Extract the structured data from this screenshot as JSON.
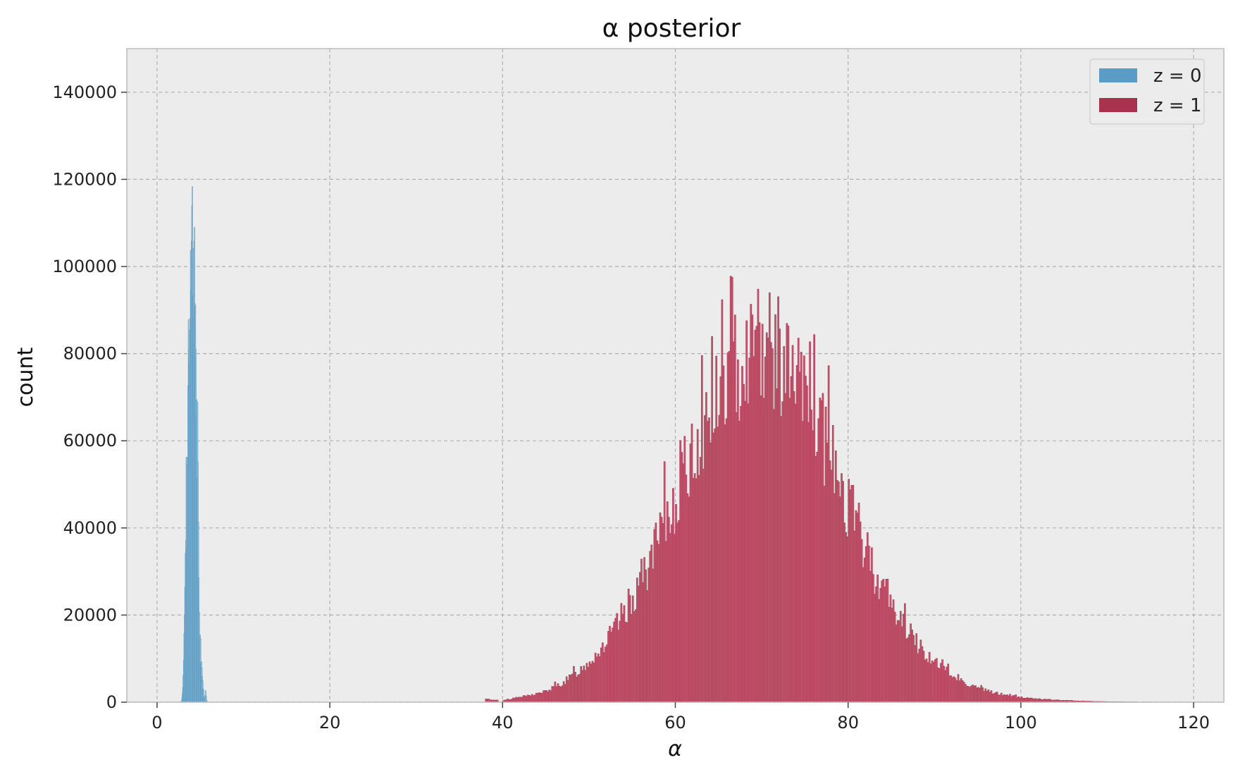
{
  "chart_data": {
    "type": "histogram",
    "title": "α posterior",
    "xlabel": "α",
    "ylabel": "count",
    "xlim": [
      -3.5,
      123.5
    ],
    "ylim": [
      0,
      150000
    ],
    "xticks": [
      0,
      20,
      40,
      60,
      80,
      100,
      120
    ],
    "yticks": [
      0,
      20000,
      40000,
      60000,
      80000,
      100000,
      120000,
      140000
    ],
    "grid": true,
    "legend_position": "top-right",
    "background": "#ececec",
    "series": [
      {
        "name": "z = 0",
        "color": "#5a9cc5",
        "fill": "#cfdbe2",
        "bins": [
          [
            2.8,
            300
          ],
          [
            2.9,
            2000
          ],
          [
            3.0,
            6000
          ],
          [
            3.1,
            15000
          ],
          [
            3.2,
            25000
          ],
          [
            3.3,
            42000
          ],
          [
            3.4,
            41000
          ],
          [
            3.5,
            56000
          ],
          [
            3.6,
            81000
          ],
          [
            3.7,
            84000
          ],
          [
            3.8,
            93000
          ],
          [
            3.9,
            104000
          ],
          [
            4.0,
            110000
          ],
          [
            4.1,
            107000
          ],
          [
            4.2,
            105000
          ],
          [
            4.3,
            94000
          ],
          [
            4.4,
            93000
          ],
          [
            4.5,
            72000
          ],
          [
            4.6,
            56000
          ],
          [
            4.7,
            48000
          ],
          [
            4.8,
            28000
          ],
          [
            4.9,
            16000
          ],
          [
            5.0,
            13000
          ],
          [
            5.1,
            9000
          ],
          [
            5.2,
            6000
          ],
          [
            5.3,
            3500
          ],
          [
            5.4,
            1500
          ],
          [
            5.5,
            800
          ],
          [
            5.6,
            3000
          ],
          [
            5.7,
            200
          ]
        ]
      },
      {
        "name": "z = 1",
        "color": "#a9324f",
        "fill": "#c45a6f",
        "bins": [
          [
            38,
            700
          ],
          [
            40,
            400
          ],
          [
            41,
            800
          ],
          [
            42,
            1200
          ],
          [
            43,
            1500
          ],
          [
            44,
            2000
          ],
          [
            45,
            2500
          ],
          [
            46,
            3500
          ],
          [
            47,
            4500
          ],
          [
            48,
            6000
          ],
          [
            49,
            7500
          ],
          [
            50,
            9500
          ],
          [
            51,
            11500
          ],
          [
            52,
            14000
          ],
          [
            53,
            17000
          ],
          [
            54,
            20500
          ],
          [
            55,
            24000
          ],
          [
            56,
            28000
          ],
          [
            57,
            32000
          ],
          [
            58,
            37000
          ],
          [
            59,
            42000
          ],
          [
            60,
            47000
          ],
          [
            61,
            52000
          ],
          [
            62,
            57000
          ],
          [
            63,
            62000
          ],
          [
            64,
            66000
          ],
          [
            65,
            70000
          ],
          [
            66,
            74000
          ],
          [
            67,
            77000
          ],
          [
            68,
            80000
          ],
          [
            69,
            82000
          ],
          [
            70,
            82000
          ],
          [
            71,
            81000
          ],
          [
            72,
            79000
          ],
          [
            73,
            76000
          ],
          [
            74,
            73000
          ],
          [
            75,
            69000
          ],
          [
            76,
            65000
          ],
          [
            77,
            60000
          ],
          [
            78,
            55000
          ],
          [
            79,
            50000
          ],
          [
            80,
            45000
          ],
          [
            81,
            40000
          ],
          [
            82,
            35000
          ],
          [
            83,
            30000
          ],
          [
            84,
            26000
          ],
          [
            85,
            22000
          ],
          [
            86,
            19000
          ],
          [
            87,
            16000
          ],
          [
            88,
            13500
          ],
          [
            89,
            11000
          ],
          [
            90,
            9000
          ],
          [
            91,
            7500
          ],
          [
            92,
            6000
          ],
          [
            93,
            5000
          ],
          [
            94,
            4000
          ],
          [
            95,
            3200
          ],
          [
            96,
            2600
          ],
          [
            97,
            2100
          ],
          [
            98,
            1700
          ],
          [
            99,
            1400
          ],
          [
            100,
            1100
          ],
          [
            101,
            900
          ],
          [
            102,
            750
          ],
          [
            103,
            600
          ],
          [
            104,
            500
          ],
          [
            105,
            400
          ],
          [
            106,
            320
          ],
          [
            107,
            260
          ],
          [
            108,
            200
          ],
          [
            109,
            160
          ],
          [
            110,
            130
          ],
          [
            111,
            100
          ],
          [
            112,
            80
          ],
          [
            114,
            60
          ],
          [
            116,
            40
          ],
          [
            118,
            30
          ]
        ]
      }
    ]
  }
}
